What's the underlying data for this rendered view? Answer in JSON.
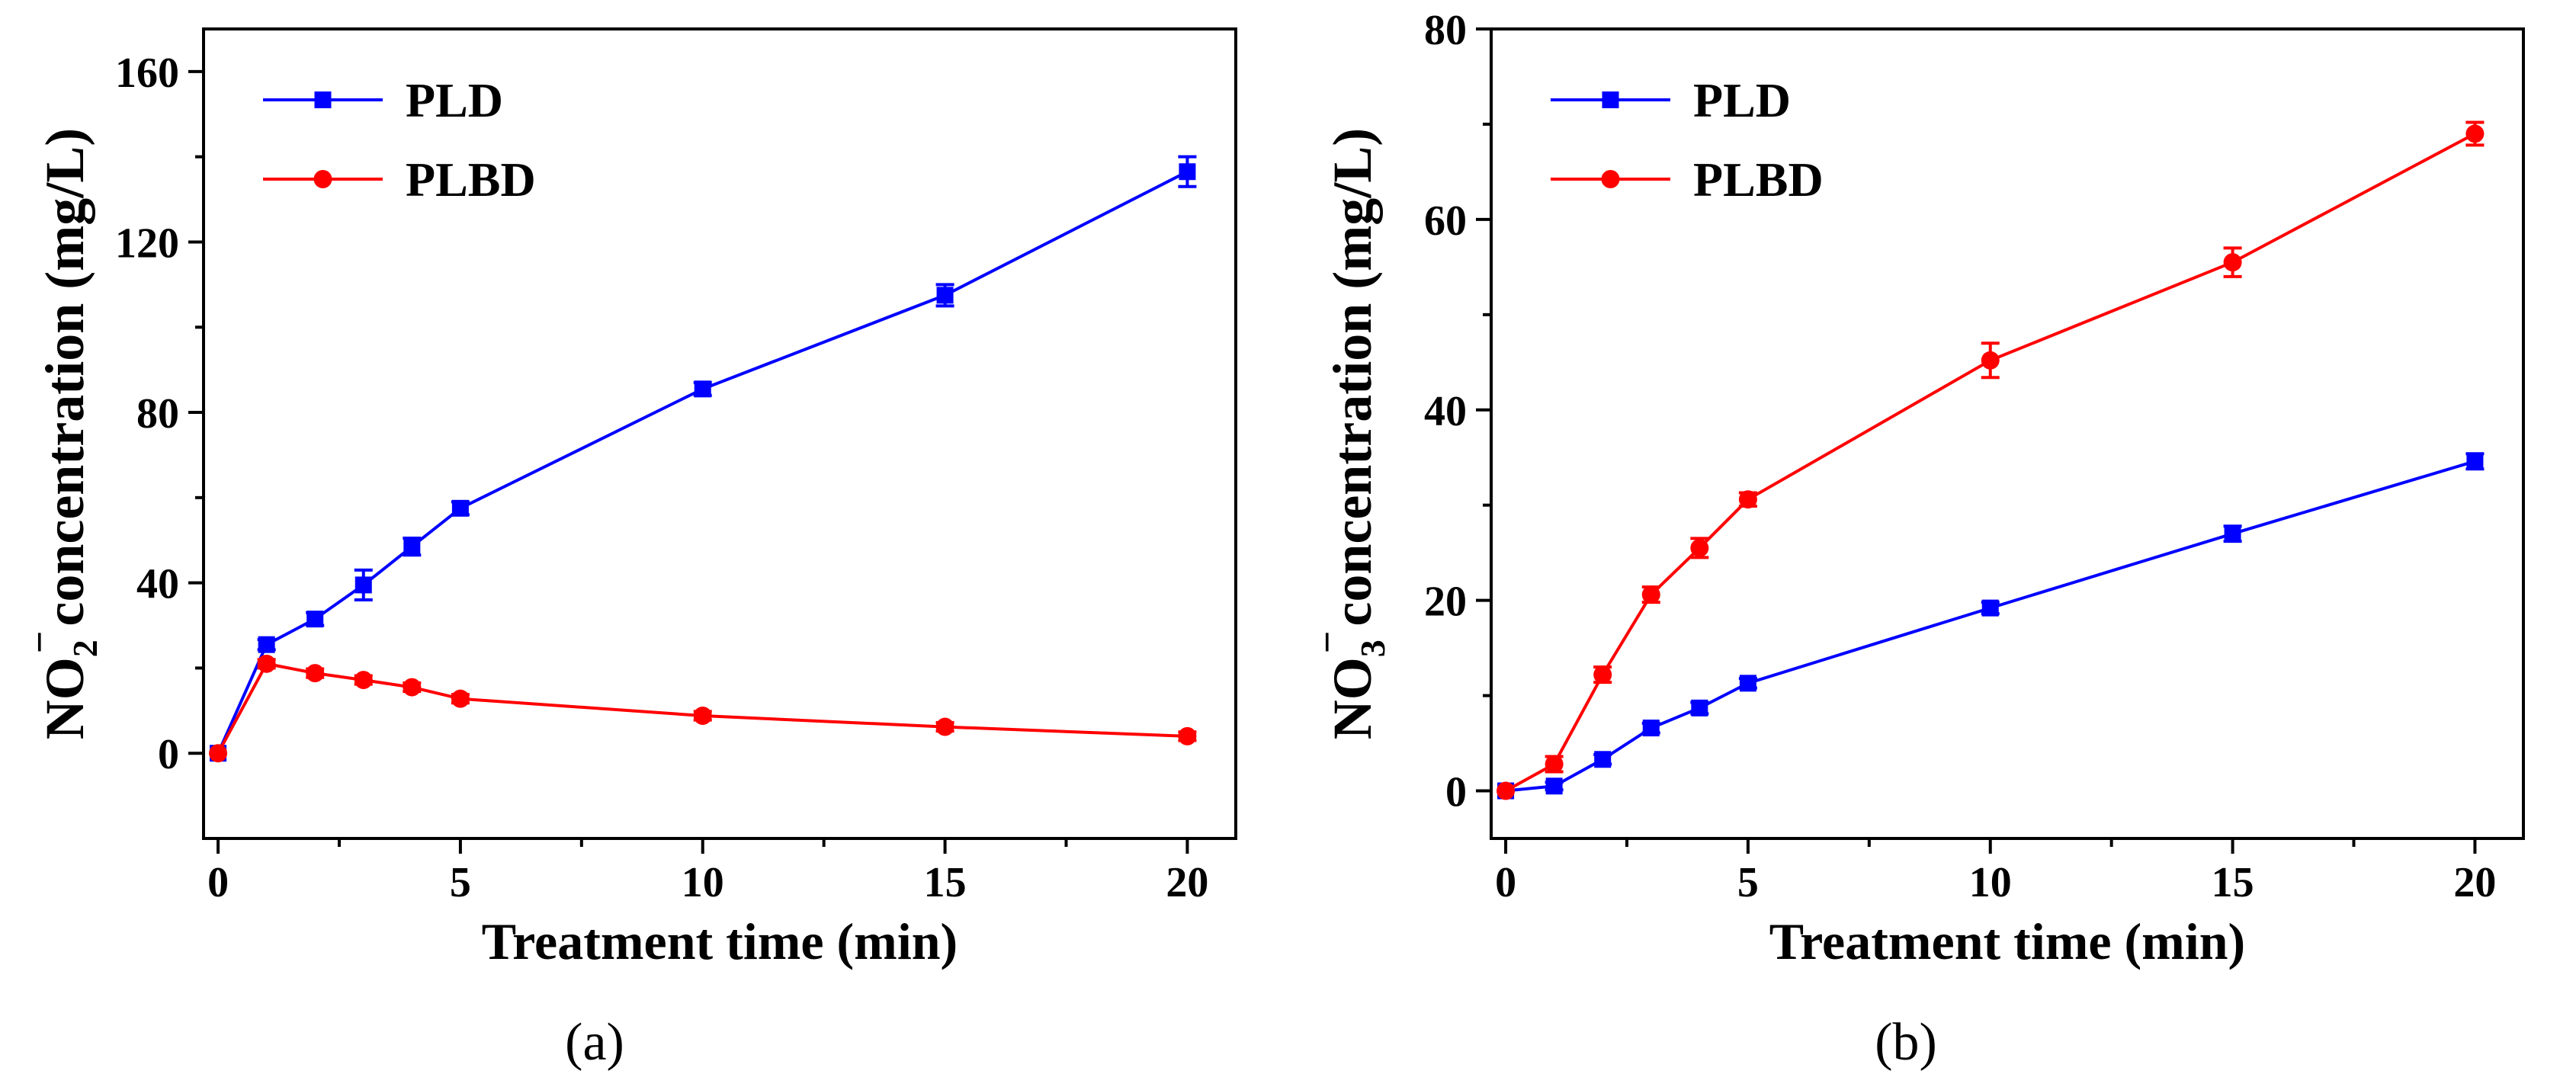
{
  "chart_data": [
    {
      "type": "line",
      "panel_label": "(a)",
      "xlabel": "Treatment time (min)",
      "ylabel": {
        "prefix": "NO",
        "subscript": "2",
        "superscript": "−",
        "suffix": "concentration (mg/L)"
      },
      "xlim": [
        -0.3,
        21
      ],
      "ylim": [
        -20,
        170
      ],
      "xticks": [
        0,
        5,
        10,
        15,
        20
      ],
      "yticks": [
        0,
        40,
        80,
        120,
        160
      ],
      "legend_position": "top-left",
      "series": [
        {
          "name": "PLD",
          "color": "#0000ff",
          "marker": "square",
          "x": [
            0,
            1,
            2,
            3,
            4,
            5,
            10,
            15,
            20
          ],
          "y": [
            0,
            25.5,
            31.5,
            39.5,
            48.5,
            57.5,
            85.5,
            107.5,
            136.5
          ],
          "err": [
            0,
            1.2,
            1.5,
            3.5,
            2,
            1.5,
            1.5,
            2.5,
            3.5
          ]
        },
        {
          "name": "PLBD",
          "color": "#ff0000",
          "marker": "circle",
          "x": [
            0,
            1,
            2,
            3,
            4,
            5,
            10,
            15,
            20
          ],
          "y": [
            0,
            21,
            18.8,
            17.2,
            15.5,
            12.8,
            8.8,
            6.2,
            4
          ],
          "err": [
            0,
            1,
            1,
            1,
            1,
            1,
            1,
            1,
            1
          ]
        }
      ]
    },
    {
      "type": "line",
      "panel_label": "(b)",
      "xlabel": "Treatment time (min)",
      "ylabel": {
        "prefix": "NO",
        "subscript": "3",
        "superscript": "−",
        "suffix": "concentration (mg/L)"
      },
      "xlim": [
        -0.3,
        21
      ],
      "ylim": [
        -5,
        80
      ],
      "xticks": [
        0,
        5,
        10,
        15,
        20
      ],
      "yticks": [
        0,
        20,
        40,
        60,
        80
      ],
      "legend_position": "top-left",
      "series": [
        {
          "name": "PLD",
          "color": "#0000ff",
          "marker": "square",
          "x": [
            0,
            1,
            2,
            3,
            4,
            5,
            10,
            15,
            20
          ],
          "y": [
            0,
            0.5,
            3.3,
            6.6,
            8.7,
            11.3,
            19.2,
            27,
            34.6
          ],
          "err": [
            0,
            0.4,
            0.5,
            0.5,
            0.6,
            0.5,
            0.6,
            0.8,
            0.8
          ]
        },
        {
          "name": "PLBD",
          "color": "#ff0000",
          "marker": "circle",
          "x": [
            0,
            1,
            2,
            3,
            4,
            5,
            10,
            15,
            20
          ],
          "y": [
            0,
            2.8,
            12.2,
            20.6,
            25.5,
            30.6,
            45.2,
            55.5,
            69
          ],
          "err": [
            0,
            0.8,
            0.8,
            0.8,
            1,
            0.7,
            1.8,
            1.5,
            1.2
          ]
        }
      ]
    }
  ]
}
